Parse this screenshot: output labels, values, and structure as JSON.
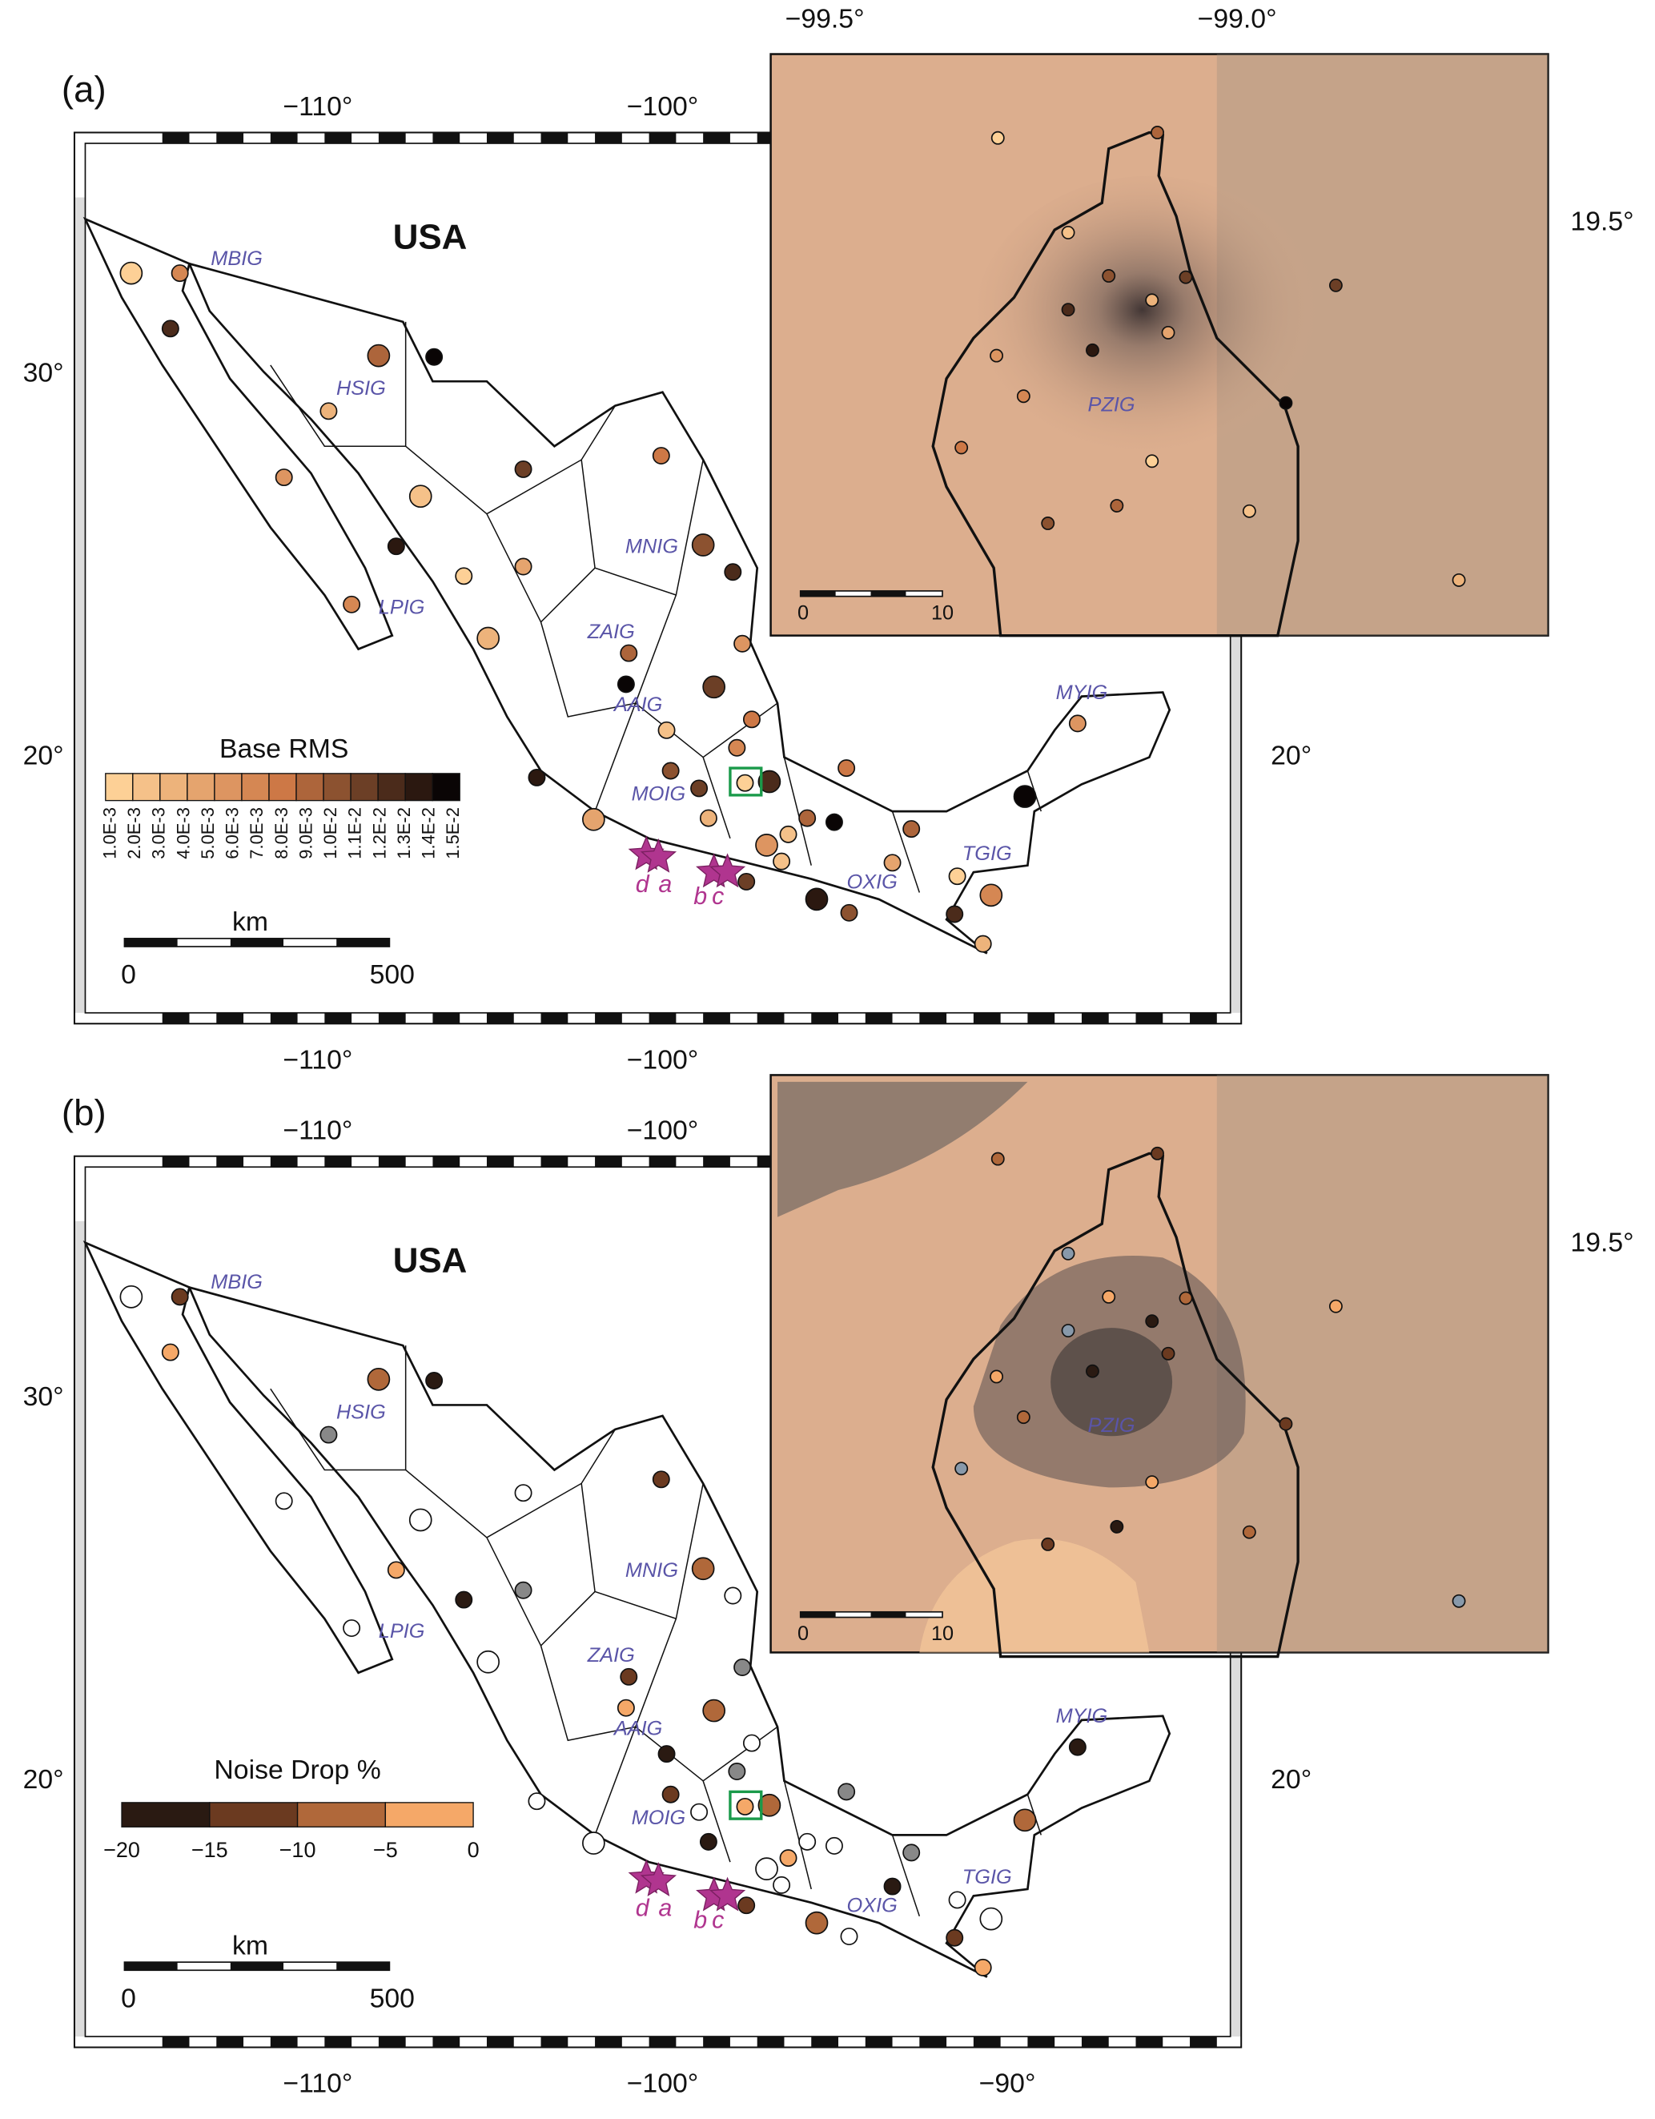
{
  "panels": [
    {
      "label": "(a)",
      "top_lon_ticks": [
        "−110°",
        "−100°"
      ],
      "bottom_lon_ticks": [
        "−110°",
        "−100°"
      ],
      "left_lat_ticks": [
        "30°",
        "20°"
      ],
      "right_lat_ticks": [
        "20°"
      ],
      "country": "USA",
      "stations": [
        "MBIG",
        "HSIG",
        "LPIG",
        "MNIG",
        "ZAIG",
        "AAIG",
        "MOIG",
        "OXIG",
        "TGIG",
        "MYIG"
      ],
      "events": [
        "d",
        "a",
        "b",
        "c"
      ],
      "colorbar": {
        "title": "Base RMS",
        "ticks": [
          "1.0E-3",
          "2.0E-3",
          "3.0E-3",
          "4.0E-3",
          "5.0E-3",
          "6.0E-3",
          "7.0E-3",
          "8.0E-3",
          "9.0E-3",
          "1.0E-2",
          "1.1E-2",
          "1.2E-2",
          "1.3E-2",
          "1.4E-2",
          "1.5E-2"
        ]
      },
      "scale": {
        "unit": "km",
        "ticks": [
          0,
          500
        ]
      },
      "inset": {
        "top_lon_ticks": [
          "−99.5°",
          "−99.0°"
        ],
        "right_lat_ticks": [
          "19.5°"
        ],
        "station": "PZIG",
        "scale_ticks": [
          0,
          10
        ]
      }
    },
    {
      "label": "(b)",
      "top_lon_ticks": [
        "−110°",
        "−100°"
      ],
      "bottom_lon_ticks": [
        "−110°",
        "−100°",
        "−90°"
      ],
      "left_lat_ticks": [
        "30°",
        "20°"
      ],
      "right_lat_ticks": [
        "20°"
      ],
      "country": "USA",
      "stations": [
        "MBIG",
        "HSIG",
        "LPIG",
        "MNIG",
        "ZAIG",
        "AAIG",
        "MOIG",
        "OXIG",
        "TGIG",
        "MYIG"
      ],
      "events": [
        "d",
        "a",
        "b",
        "c"
      ],
      "colorbar": {
        "title": "Noise Drop %",
        "ticks": [
          "−20",
          "−15",
          "−10",
          "−5",
          "0"
        ]
      },
      "scale": {
        "unit": "km",
        "ticks": [
          0,
          500
        ]
      },
      "inset": {
        "right_lat_ticks": [
          "19.5°"
        ],
        "station": "PZIG",
        "scale_ticks": [
          0,
          10
        ]
      }
    }
  ]
}
